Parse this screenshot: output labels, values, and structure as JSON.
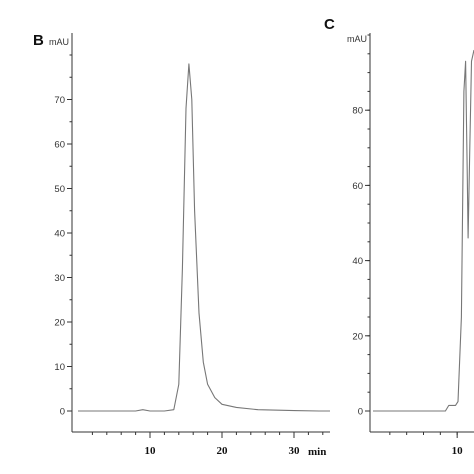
{
  "chart_data": [
    {
      "type": "line",
      "panel_label": "B",
      "ylabel": "mAU",
      "xlabel": "min",
      "xlim": [
        0,
        35
      ],
      "ylim": [
        0,
        80
      ],
      "yticks": [
        0,
        10,
        20,
        30,
        40,
        50,
        60,
        70
      ],
      "xticks": [
        10,
        20,
        30
      ],
      "x_minor_step": 2,
      "y_minor_step": 5,
      "grid": false,
      "series": [
        {
          "x": [
            0,
            5,
            8,
            9,
            10,
            12,
            13.3,
            14,
            14.5,
            15,
            15.4,
            15.8,
            16.2,
            16.8,
            17.4,
            18,
            19,
            20,
            22,
            25,
            30,
            33.5,
            35
          ],
          "y": [
            0,
            0,
            0,
            0.3,
            0,
            0,
            0.3,
            6,
            32,
            68,
            78,
            70,
            45,
            22,
            11,
            6,
            3,
            1.5,
            0.8,
            0.3,
            0.1,
            0,
            0
          ]
        }
      ]
    },
    {
      "type": "line",
      "panel_label": "C",
      "ylabel": "mAU",
      "xlim": [
        0,
        12
      ],
      "ylim": [
        0,
        100
      ],
      "yticks": [
        0,
        20,
        40,
        60,
        80
      ],
      "xticks": [
        10
      ],
      "x_minor_step": 2,
      "y_minor_step": 5,
      "grid": false,
      "series": [
        {
          "x": [
            0,
            4,
            8.6,
            9,
            9.8,
            10.1,
            10.5,
            10.8,
            11,
            11.2,
            11.3,
            11.5,
            11.7,
            12
          ],
          "y": [
            0,
            0,
            0,
            1.5,
            1.5,
            2.5,
            25,
            85,
            93,
            62,
            46,
            70,
            93,
            96
          ]
        }
      ]
    }
  ]
}
